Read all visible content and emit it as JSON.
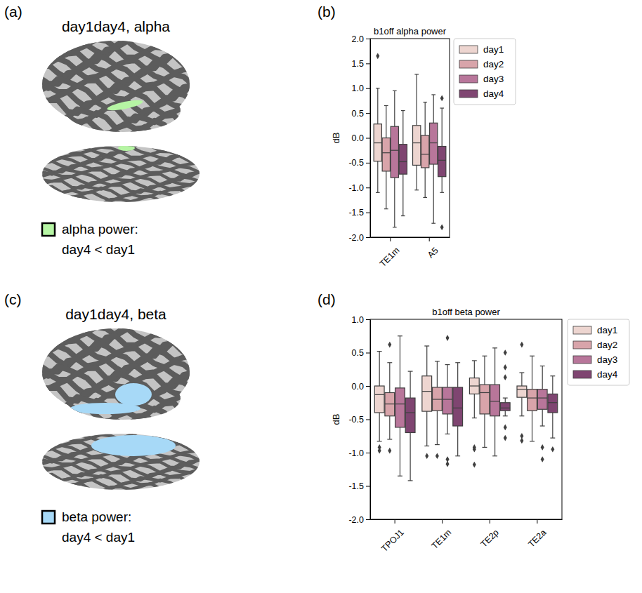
{
  "panel_labels": [
    "(a)",
    "(b)",
    "(c)",
    "(d)"
  ],
  "brain_panels": [
    {
      "title": "day1day4, alpha",
      "legend_lines": [
        "alpha power:",
        "day4 < day1"
      ],
      "color": "#b6f5a4"
    },
    {
      "title": "day1day4, beta",
      "legend_lines": [
        "beta power:",
        "day4 < day1"
      ],
      "color": "#a7d9f7"
    }
  ],
  "chart_data": [
    {
      "type": "box",
      "title": "b1off alpha power",
      "y_label": "dB",
      "categories": [
        "TE1m",
        "A5"
      ],
      "ylim": [
        -2,
        2
      ],
      "yticks": [
        {
          "value": 2,
          "label": "2.0"
        },
        {
          "value": 1.5,
          "label": "1.5"
        },
        {
          "value": 1,
          "label": "1.0"
        },
        {
          "value": 0.5,
          "label": "0.5"
        },
        {
          "value": 0,
          "label": "0.0"
        },
        {
          "value": -0.5,
          "label": "-0.5"
        },
        {
          "value": -1,
          "label": "-1.0"
        },
        {
          "value": -1.5,
          "label": "-1.5"
        },
        {
          "value": -2,
          "label": "-2.0"
        }
      ],
      "legend": "right",
      "marker": "diamond",
      "series": [
        {
          "name": "day1",
          "color": "#edd5d0",
          "values": [
            {
              "low": -1.1,
              "q1": -0.47,
              "median": -0.1,
              "q3": 0.28,
              "high": 1.0,
              "outliers": [
                1.65
              ]
            },
            {
              "low": -1.05,
              "q1": -0.55,
              "median": -0.1,
              "q3": 0.25,
              "high": 1.28,
              "outliers": []
            }
          ]
        },
        {
          "name": "day2",
          "color": "#d8a4aa",
          "values": [
            {
              "low": -1.43,
              "q1": -0.67,
              "median": -0.3,
              "q3": 0.0,
              "high": 0.65,
              "outliers": []
            },
            {
              "low": -1.2,
              "q1": -0.6,
              "median": -0.33,
              "q3": 0.05,
              "high": 0.72,
              "outliers": []
            }
          ]
        },
        {
          "name": "day3",
          "color": "#b8769a",
          "values": [
            {
              "low": -1.8,
              "q1": -0.8,
              "median": -0.25,
              "q3": 0.23,
              "high": 0.95,
              "outliers": []
            },
            {
              "low": -1.72,
              "q1": -0.53,
              "median": -0.1,
              "q3": 0.3,
              "high": 0.87,
              "outliers": []
            }
          ]
        },
        {
          "name": "day4",
          "color": "#7f4571",
          "values": [
            {
              "low": -1.57,
              "q1": -0.73,
              "median": -0.48,
              "q3": -0.13,
              "high": 0.55,
              "outliers": []
            },
            {
              "low": -1.1,
              "q1": -0.78,
              "median": -0.45,
              "q3": -0.17,
              "high": 0.6,
              "outliers": [
                0.8,
                -1.8
              ]
            }
          ]
        }
      ]
    },
    {
      "type": "box",
      "title": "b1off beta power",
      "y_label": "dB",
      "categories": [
        "TPOJ1",
        "TE1m",
        "TE2p",
        "TE2a"
      ],
      "ylim": [
        -2,
        1
      ],
      "yticks": [
        {
          "value": 1,
          "label": "1.0"
        },
        {
          "value": 0.5,
          "label": "0.5"
        },
        {
          "value": 0,
          "label": "0.0"
        },
        {
          "value": -0.5,
          "label": "-0.5"
        },
        {
          "value": -1,
          "label": "-1.0"
        },
        {
          "value": -1.5,
          "label": "-1.5"
        },
        {
          "value": -2,
          "label": "-2.0"
        }
      ],
      "legend": "right",
      "marker": "diamond",
      "series": [
        {
          "name": "day1",
          "color": "#edd5d0",
          "values": [
            {
              "low": -0.83,
              "q1": -0.4,
              "median": -0.13,
              "q3": 0.0,
              "high": 0.52,
              "outliers": [
                -0.92,
                -0.97
              ]
            },
            {
              "low": -0.9,
              "q1": -0.38,
              "median": -0.08,
              "q3": 0.15,
              "high": 0.6,
              "outliers": [
                -1.05
              ]
            },
            {
              "low": -0.48,
              "q1": -0.12,
              "median": 0.0,
              "q3": 0.12,
              "high": 0.38,
              "outliers": [
                -0.92,
                -0.95,
                -1.18
              ]
            },
            {
              "low": -0.45,
              "q1": -0.17,
              "median": -0.05,
              "q3": 0.0,
              "high": 0.2,
              "outliers": [
                0.62,
                -0.75,
                -0.82
              ]
            }
          ]
        },
        {
          "name": "day2",
          "color": "#d8a4aa",
          "values": [
            {
              "low": -0.8,
              "q1": -0.45,
              "median": -0.27,
              "q3": -0.1,
              "high": 0.35,
              "outliers": [
                0.62,
                -0.97
              ]
            },
            {
              "low": -0.88,
              "q1": -0.37,
              "median": -0.2,
              "q3": -0.02,
              "high": 0.37,
              "outliers": [
                -1.05
              ]
            },
            {
              "low": -0.92,
              "q1": -0.42,
              "median": -0.1,
              "q3": 0.02,
              "high": 0.45,
              "outliers": []
            },
            {
              "low": -0.83,
              "q1": -0.37,
              "median": -0.18,
              "q3": -0.05,
              "high": 0.45,
              "outliers": []
            }
          ]
        },
        {
          "name": "day3",
          "color": "#b8769a",
          "values": [
            {
              "low": -1.35,
              "q1": -0.62,
              "median": -0.27,
              "q3": -0.03,
              "high": 0.75,
              "outliers": []
            },
            {
              "low": -0.72,
              "q1": -0.42,
              "median": -0.2,
              "q3": -0.02,
              "high": 0.32,
              "outliers": [
                0.72,
                -1.1,
                -1.17
              ]
            },
            {
              "low": -1.05,
              "q1": -0.45,
              "median": -0.23,
              "q3": 0.02,
              "high": 0.57,
              "outliers": []
            },
            {
              "low": -0.6,
              "q1": -0.35,
              "median": -0.18,
              "q3": -0.05,
              "high": 0.3,
              "outliers": [
                -0.92,
                -1.1
              ]
            }
          ]
        },
        {
          "name": "day4",
          "color": "#7f4571",
          "values": [
            {
              "low": -1.42,
              "q1": -0.7,
              "median": -0.4,
              "q3": -0.18,
              "high": 0.22,
              "outliers": []
            },
            {
              "low": -1.05,
              "q1": -0.6,
              "median": -0.33,
              "q3": -0.02,
              "high": 0.35,
              "outliers": []
            },
            {
              "low": -0.45,
              "q1": -0.37,
              "median": -0.33,
              "q3": -0.25,
              "high": -0.18,
              "outliers": [
                0.5,
                0.28,
                0.13,
                -0.62,
                -0.78
              ]
            },
            {
              "low": -0.78,
              "q1": -0.4,
              "median": -0.25,
              "q3": -0.12,
              "high": 0.15,
              "outliers": [
                -0.95
              ]
            }
          ]
        }
      ]
    }
  ]
}
